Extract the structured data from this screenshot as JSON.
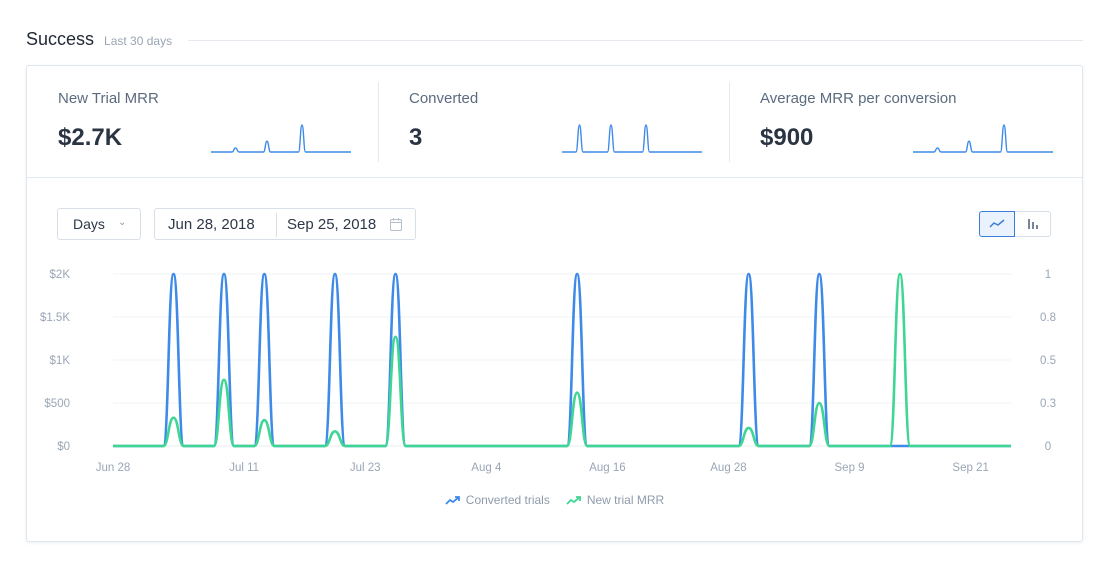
{
  "header": {
    "title": "Success",
    "subtitle": "Last 30 days"
  },
  "kpis": [
    {
      "label": "New Trial MRR",
      "value": "$2.7K",
      "spark": [
        0,
        0,
        0,
        0,
        0,
        0,
        0,
        0.15,
        0,
        0,
        0,
        0,
        0,
        0,
        0,
        0,
        0.4,
        0,
        0,
        0,
        0,
        0,
        0,
        0,
        0,
        0,
        1,
        0,
        0,
        0,
        0,
        0,
        0,
        0,
        0,
        0,
        0,
        0,
        0,
        0,
        0
      ]
    },
    {
      "label": "Converted",
      "value": "3",
      "spark": [
        0,
        0,
        0,
        0,
        0,
        1,
        0,
        0,
        0,
        0,
        0,
        0,
        0,
        0,
        1,
        0,
        0,
        0,
        0,
        0,
        0,
        0,
        0,
        0,
        1,
        0,
        0,
        0,
        0,
        0,
        0,
        0,
        0,
        0,
        0,
        0,
        0,
        0,
        0,
        0,
        0
      ]
    },
    {
      "label": "Average MRR per conversion",
      "value": "$900",
      "spark": [
        0,
        0,
        0,
        0,
        0,
        0,
        0,
        0.15,
        0,
        0,
        0,
        0,
        0,
        0,
        0,
        0,
        0.4,
        0,
        0,
        0,
        0,
        0,
        0,
        0,
        0,
        0,
        1,
        0,
        0,
        0,
        0,
        0,
        0,
        0,
        0,
        0,
        0,
        0,
        0,
        0,
        0
      ]
    }
  ],
  "controls": {
    "granularity": "Days",
    "date_start": "Jun 28, 2018",
    "date_end": "Sep 25, 2018"
  },
  "legend": {
    "series1": "Converted trials",
    "series2": "New trial MRR"
  },
  "colors": {
    "blue": "#3d8ae8",
    "green": "#3fd694"
  },
  "chart_data": {
    "type": "line",
    "title": "",
    "x_start": "Jun 28",
    "num_days": 90,
    "x_ticks": [
      {
        "day": 0,
        "label": "Jun 28"
      },
      {
        "day": 13,
        "label": "Jul 11"
      },
      {
        "day": 25,
        "label": "Jul 23"
      },
      {
        "day": 37,
        "label": "Aug 4"
      },
      {
        "day": 49,
        "label": "Aug 16"
      },
      {
        "day": 61,
        "label": "Aug 28"
      },
      {
        "day": 73,
        "label": "Sep 9"
      },
      {
        "day": 85,
        "label": "Sep 21"
      }
    ],
    "y_left": {
      "ticks": [
        "$0",
        "$500",
        "$1K",
        "$1.5K",
        "$2K"
      ],
      "values": [
        0,
        500,
        1000,
        1500,
        2000
      ],
      "max": 2000
    },
    "y_right": {
      "ticks": [
        "0",
        "0.3",
        "0.5",
        "0.8",
        "1"
      ],
      "values": [
        0,
        0.25,
        0.5,
        0.75,
        1
      ],
      "max": 1
    },
    "series": [
      {
        "name": "Converted trials",
        "axis": "right",
        "points": [
          [
            6,
            1
          ],
          [
            11,
            1
          ],
          [
            15,
            1
          ],
          [
            22,
            1
          ],
          [
            28,
            1
          ],
          [
            46,
            1
          ],
          [
            63,
            1
          ],
          [
            70,
            1
          ]
        ]
      },
      {
        "name": "New trial MRR",
        "axis": "left",
        "points": [
          [
            6,
            330
          ],
          [
            11,
            770
          ],
          [
            15,
            300
          ],
          [
            22,
            170
          ],
          [
            28,
            1270
          ],
          [
            46,
            620
          ],
          [
            63,
            210
          ],
          [
            70,
            500
          ],
          [
            78,
            2000
          ]
        ]
      }
    ]
  }
}
